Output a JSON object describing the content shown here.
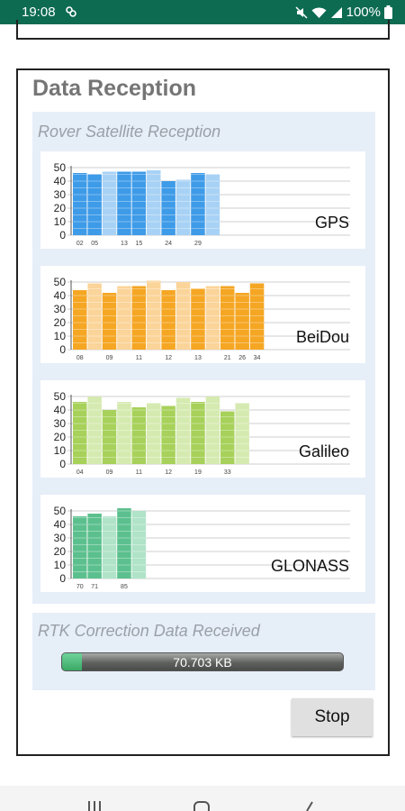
{
  "status_bar": {
    "time": "19:08",
    "battery": "100%",
    "icons": [
      "app-notification-icon",
      "mute-icon",
      "wifi-icon",
      "signal-icon",
      "battery-icon"
    ]
  },
  "card": {
    "title": "Data Reception"
  },
  "satellite_panel": {
    "title": "Rover Satellite Reception"
  },
  "rtk_panel": {
    "title": "RTK Correction Data Received",
    "received": "70.703 KB",
    "progress_fraction": 0.07
  },
  "stop_button": {
    "label": "Stop"
  },
  "colors": {
    "status_bar": "#0d6b52",
    "panel_background": "#e6eef8",
    "gps": "#3e9be8",
    "gps_light": "#a8d2f5",
    "beidou": "#f5a623",
    "beidou_light": "#fbd49a",
    "galileo": "#a7d15a",
    "galileo_light": "#d5eab0",
    "glonass": "#5cc08e",
    "glonass_light": "#b0e3c8"
  },
  "chart_data": [
    {
      "type": "bar",
      "title": "GPS",
      "ylim": [
        0,
        50
      ],
      "yticks": [
        0,
        10,
        20,
        30,
        40,
        50
      ],
      "grid": true,
      "values": [
        46,
        45,
        47,
        47,
        47,
        48,
        40,
        41,
        46,
        45
      ],
      "highlighted": [
        true,
        true,
        false,
        true,
        true,
        false,
        true,
        false,
        true,
        false
      ],
      "tick_labels": [
        "02",
        "05",
        "",
        "13",
        "15",
        "",
        "24",
        "",
        "29",
        ""
      ]
    },
    {
      "type": "bar",
      "title": "BeiDou",
      "ylim": [
        0,
        50
      ],
      "yticks": [
        0,
        10,
        20,
        30,
        40,
        50
      ],
      "grid": true,
      "values": [
        44,
        49,
        42,
        47,
        47,
        51,
        44,
        50,
        45,
        47,
        47,
        42,
        49
      ],
      "highlighted": [
        true,
        false,
        true,
        false,
        true,
        false,
        true,
        false,
        true,
        false,
        true,
        true,
        true
      ],
      "tick_labels": [
        "08",
        "",
        "09",
        "",
        "11",
        "",
        "12",
        "",
        "13",
        "",
        "21",
        "26",
        "34"
      ]
    },
    {
      "type": "bar",
      "title": "Galileo",
      "ylim": [
        0,
        50
      ],
      "yticks": [
        0,
        10,
        20,
        30,
        40,
        50
      ],
      "grid": true,
      "values": [
        46,
        50,
        40,
        46,
        42,
        45,
        43,
        49,
        46,
        50,
        39,
        45
      ],
      "highlighted": [
        true,
        false,
        true,
        false,
        true,
        false,
        true,
        false,
        true,
        false,
        true,
        false
      ],
      "tick_labels": [
        "04",
        "",
        "09",
        "",
        "11",
        "",
        "12",
        "",
        "19",
        "",
        "33",
        ""
      ]
    },
    {
      "type": "bar",
      "title": "GLONASS",
      "ylim": [
        0,
        50
      ],
      "yticks": [
        0,
        10,
        20,
        30,
        40,
        50
      ],
      "grid": true,
      "values": [
        46,
        48,
        46,
        52,
        50
      ],
      "highlighted": [
        true,
        true,
        false,
        true,
        false
      ],
      "tick_labels": [
        "70",
        "71",
        "",
        "85",
        ""
      ]
    }
  ]
}
